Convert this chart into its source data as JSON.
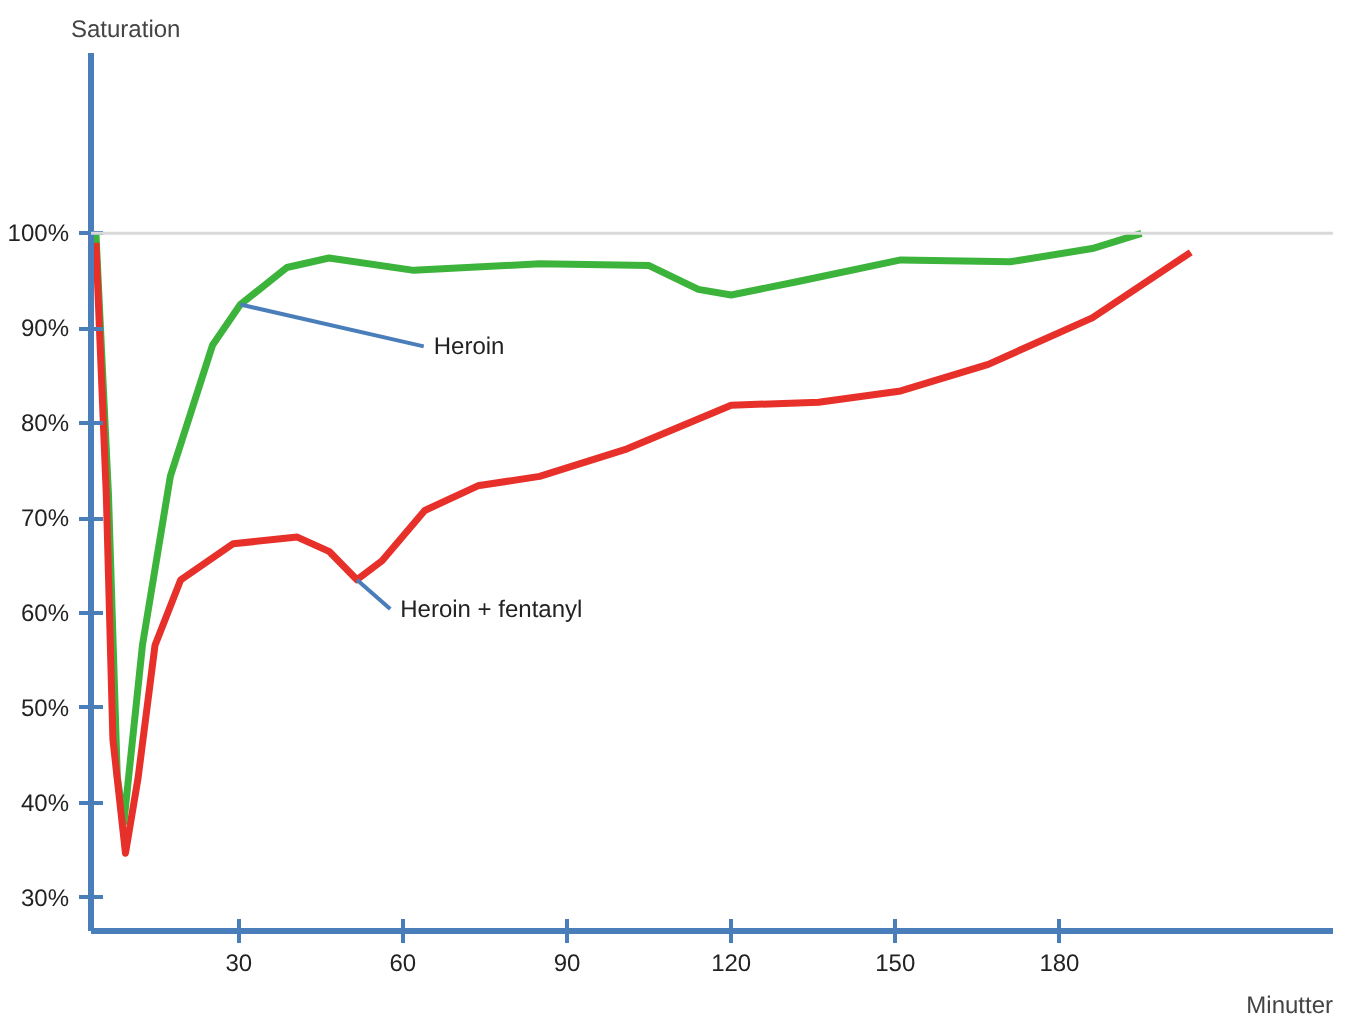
{
  "chart_data": {
    "type": "line",
    "xlabel": "Minutter",
    "ylabel": "Saturation",
    "xlim": [
      3,
      230
    ],
    "ylim": [
      26.5,
      119
    ],
    "xticks": [
      30,
      60,
      90,
      120,
      150,
      180
    ],
    "yticks": [
      {
        "value": 30,
        "label": "30%"
      },
      {
        "value": 40,
        "label": "40%"
      },
      {
        "value": 50,
        "label": "50%"
      },
      {
        "value": 60,
        "label": "60%"
      },
      {
        "value": 70,
        "label": "70%"
      },
      {
        "value": 80,
        "label": "80%"
      },
      {
        "value": 90,
        "label": "90%"
      },
      {
        "value": 100,
        "label": "100%"
      }
    ],
    "grid": false,
    "marker": "none",
    "line_style": "solid",
    "ref_lines": [
      {
        "axis": "y",
        "value": 100,
        "label": null,
        "color": "#d9d9d9"
      }
    ],
    "series": [
      {
        "name": "Heroin",
        "color": "#3cb43c",
        "x": [
          3.9,
          6.2,
          7.8,
          9.0,
          12.4,
          17.5,
          25.2,
          30.3,
          38.8,
          46.5,
          62,
          85,
          105,
          114,
          120,
          132,
          151,
          171,
          186,
          195
        ],
        "values": [
          100,
          72.4,
          42.8,
          37.9,
          56.6,
          74.4,
          88.2,
          92.5,
          96.4,
          97.4,
          96.1,
          96.8,
          96.6,
          94.1,
          93.5,
          94.9,
          97.2,
          97,
          98.4,
          100
        ]
      },
      {
        "name": "Heroin + fentanyl",
        "color": "#e8302a",
        "x": [
          3.9,
          5.8,
          7.0,
          9.3,
          11.6,
          14.7,
          19.4,
          29,
          40.7,
          46.5,
          51.6,
          56.2,
          64,
          73.7,
          85,
          101,
          120,
          136,
          151,
          167,
          186,
          204
        ],
        "values": [
          99,
          72.4,
          46.7,
          34.7,
          42.6,
          56.6,
          63.5,
          67.3,
          68,
          66.5,
          63.5,
          65.5,
          70.8,
          73.4,
          74.4,
          77.3,
          81.9,
          82.2,
          83.4,
          86.2,
          91.1,
          98
        ]
      }
    ]
  }
}
